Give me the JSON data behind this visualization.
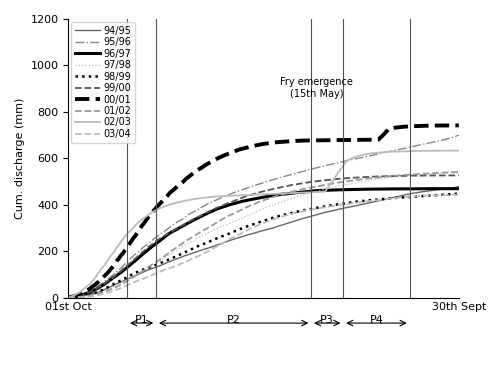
{
  "ylabel": "Cum. discharge (mm)",
  "ylim": [
    0,
    1200
  ],
  "yticks": [
    0,
    200,
    400,
    600,
    800,
    1000,
    1200
  ],
  "xlabel_left": "01st Oct",
  "xlabel_right": "30th Sept",
  "xmin": 0,
  "xmax": 365,
  "vertical_lines_x": [
    55,
    82,
    227,
    257,
    319
  ],
  "period_labels": [
    "P1",
    "P2",
    "P3",
    "P4"
  ],
  "period_arrows": [
    [
      55,
      82
    ],
    [
      82,
      227
    ],
    [
      227,
      257
    ],
    [
      257,
      319
    ]
  ],
  "fry_emergence_x": 227,
  "fry_emergence_label": "Fry emergence\n(15th May)",
  "series": [
    {
      "label": "94/95",
      "color": "#666666",
      "linewidth": 1.0,
      "linestyle": "solid",
      "data_x": [
        0,
        5,
        10,
        15,
        20,
        25,
        30,
        35,
        40,
        45,
        50,
        55,
        60,
        65,
        70,
        75,
        80,
        85,
        90,
        95,
        100,
        110,
        120,
        130,
        140,
        150,
        160,
        170,
        180,
        190,
        200,
        210,
        220,
        230,
        240,
        250,
        260,
        270,
        280,
        290,
        300,
        310,
        320,
        330,
        340,
        350,
        360,
        365
      ],
      "data_y": [
        0,
        2,
        5,
        9,
        14,
        20,
        28,
        38,
        50,
        62,
        72,
        82,
        92,
        102,
        112,
        122,
        130,
        138,
        148,
        158,
        168,
        185,
        200,
        215,
        230,
        248,
        262,
        275,
        288,
        300,
        315,
        328,
        342,
        355,
        368,
        378,
        388,
        398,
        408,
        418,
        428,
        438,
        448,
        455,
        462,
        468,
        473,
        478
      ]
    },
    {
      "label": "95/96",
      "color": "#888888",
      "linewidth": 1.0,
      "linestyle": "dashdot",
      "data_x": [
        0,
        5,
        10,
        15,
        20,
        25,
        30,
        35,
        40,
        45,
        50,
        55,
        60,
        65,
        70,
        75,
        80,
        85,
        90,
        95,
        100,
        110,
        120,
        130,
        140,
        150,
        160,
        170,
        180,
        190,
        200,
        210,
        220,
        230,
        240,
        250,
        260,
        270,
        280,
        290,
        300,
        310,
        320,
        330,
        340,
        350,
        360,
        365
      ],
      "data_y": [
        0,
        4,
        10,
        18,
        28,
        40,
        55,
        72,
        90,
        110,
        130,
        150,
        170,
        190,
        210,
        230,
        250,
        268,
        285,
        302,
        318,
        348,
        375,
        400,
        422,
        442,
        460,
        477,
        492,
        507,
        520,
        533,
        545,
        557,
        568,
        578,
        588,
        598,
        608,
        618,
        628,
        638,
        648,
        658,
        668,
        678,
        690,
        700
      ]
    },
    {
      "label": "96/97",
      "color": "#000000",
      "linewidth": 2.2,
      "linestyle": "solid",
      "data_x": [
        0,
        5,
        10,
        15,
        20,
        25,
        30,
        35,
        40,
        45,
        50,
        55,
        60,
        65,
        70,
        75,
        80,
        85,
        90,
        95,
        100,
        110,
        120,
        130,
        140,
        150,
        160,
        170,
        180,
        190,
        200,
        210,
        220,
        230,
        240,
        250,
        260,
        270,
        280,
        290,
        300,
        310,
        320,
        330,
        340,
        350,
        360,
        365
      ],
      "data_y": [
        0,
        3,
        8,
        15,
        24,
        35,
        48,
        62,
        78,
        95,
        112,
        130,
        150,
        170,
        190,
        210,
        228,
        245,
        262,
        278,
        292,
        318,
        342,
        365,
        385,
        400,
        412,
        422,
        430,
        438,
        445,
        450,
        455,
        460,
        462,
        464,
        465,
        466,
        467,
        467,
        468,
        468,
        468,
        469,
        469,
        469,
        469,
        469
      ]
    },
    {
      "label": "97/98",
      "color": "#bbbbbb",
      "linewidth": 0.9,
      "linestyle": "dotted",
      "data_x": [
        0,
        5,
        10,
        15,
        20,
        25,
        30,
        35,
        40,
        45,
        50,
        55,
        60,
        65,
        70,
        75,
        80,
        85,
        90,
        95,
        100,
        110,
        120,
        130,
        140,
        150,
        160,
        170,
        180,
        190,
        200,
        210,
        220,
        230,
        240,
        250,
        260,
        270,
        280,
        290,
        300,
        310,
        320,
        330,
        340,
        350,
        360,
        365
      ],
      "data_y": [
        0,
        1,
        3,
        6,
        10,
        15,
        22,
        30,
        40,
        52,
        65,
        78,
        90,
        102,
        115,
        128,
        140,
        155,
        170,
        185,
        200,
        228,
        255,
        278,
        298,
        318,
        338,
        358,
        378,
        396,
        413,
        428,
        442,
        455,
        467,
        478,
        488,
        497,
        505,
        512,
        518,
        523,
        527,
        530,
        533,
        535,
        537,
        538
      ]
    },
    {
      "label": "98/99",
      "color": "#000000",
      "linewidth": 1.8,
      "linestyle": "dotted",
      "data_x": [
        0,
        5,
        10,
        15,
        20,
        25,
        30,
        35,
        40,
        45,
        50,
        55,
        60,
        65,
        70,
        75,
        80,
        85,
        90,
        95,
        100,
        110,
        120,
        130,
        140,
        150,
        160,
        170,
        180,
        190,
        200,
        210,
        220,
        230,
        240,
        250,
        260,
        270,
        280,
        290,
        300,
        310,
        320,
        330,
        340,
        350,
        360,
        365
      ],
      "data_y": [
        0,
        2,
        5,
        9,
        14,
        20,
        28,
        38,
        50,
        62,
        74,
        86,
        98,
        108,
        118,
        128,
        136,
        145,
        155,
        165,
        175,
        198,
        220,
        240,
        260,
        278,
        296,
        313,
        328,
        342,
        355,
        366,
        376,
        385,
        393,
        400,
        407,
        413,
        418,
        422,
        426,
        430,
        433,
        436,
        440,
        443,
        446,
        448
      ]
    },
    {
      "label": "99/00",
      "color": "#555555",
      "linewidth": 1.3,
      "linestyle": "dashed",
      "data_x": [
        0,
        5,
        10,
        15,
        20,
        25,
        30,
        35,
        40,
        45,
        50,
        55,
        60,
        65,
        70,
        75,
        80,
        85,
        90,
        95,
        100,
        110,
        120,
        130,
        140,
        150,
        160,
        170,
        180,
        190,
        200,
        210,
        220,
        230,
        240,
        250,
        260,
        270,
        280,
        290,
        300,
        310,
        320,
        330,
        340,
        350,
        360,
        365
      ],
      "data_y": [
        0,
        3,
        8,
        15,
        24,
        35,
        48,
        63,
        80,
        98,
        118,
        138,
        158,
        178,
        198,
        218,
        236,
        252,
        268,
        282,
        295,
        320,
        345,
        367,
        388,
        407,
        424,
        440,
        454,
        466,
        476,
        485,
        493,
        500,
        505,
        510,
        514,
        517,
        520,
        522,
        523,
        524,
        525,
        525,
        526,
        526,
        526,
        526
      ]
    },
    {
      "label": "00/01",
      "color": "#000000",
      "linewidth": 2.8,
      "linestyle": "dashed",
      "data_x": [
        0,
        5,
        10,
        15,
        20,
        25,
        30,
        35,
        40,
        45,
        50,
        55,
        60,
        65,
        70,
        75,
        80,
        85,
        90,
        95,
        100,
        110,
        120,
        130,
        140,
        150,
        160,
        170,
        180,
        190,
        200,
        210,
        220,
        230,
        240,
        250,
        260,
        270,
        280,
        290,
        300,
        310,
        320,
        330,
        340,
        350,
        360,
        365
      ],
      "data_y": [
        0,
        5,
        13,
        24,
        38,
        55,
        75,
        98,
        125,
        155,
        185,
        218,
        252,
        285,
        318,
        350,
        380,
        408,
        432,
        455,
        475,
        512,
        545,
        573,
        598,
        618,
        635,
        648,
        658,
        665,
        670,
        673,
        675,
        676,
        676,
        677,
        677,
        678,
        678,
        679,
        729,
        735,
        738,
        740,
        741,
        741,
        741,
        742
      ]
    },
    {
      "label": "01/02",
      "color": "#999999",
      "linewidth": 1.3,
      "linestyle": "dashed",
      "data_x": [
        0,
        5,
        10,
        15,
        20,
        25,
        30,
        35,
        40,
        45,
        50,
        55,
        60,
        65,
        70,
        75,
        80,
        85,
        90,
        95,
        100,
        110,
        120,
        130,
        140,
        150,
        160,
        170,
        180,
        190,
        200,
        210,
        220,
        230,
        240,
        250,
        260,
        270,
        280,
        290,
        300,
        310,
        320,
        330,
        340,
        350,
        360,
        365
      ],
      "data_y": [
        0,
        1,
        2,
        5,
        8,
        13,
        19,
        27,
        37,
        48,
        60,
        73,
        86,
        100,
        115,
        130,
        145,
        162,
        178,
        195,
        212,
        245,
        275,
        302,
        328,
        352,
        374,
        394,
        412,
        428,
        442,
        455,
        466,
        476,
        485,
        493,
        500,
        506,
        512,
        517,
        522,
        526,
        530,
        533,
        536,
        538,
        540,
        541
      ]
    },
    {
      "label": "02/03",
      "color": "#bbbbbb",
      "linewidth": 1.3,
      "linestyle": "solid",
      "data_x": [
        0,
        5,
        10,
        15,
        20,
        25,
        30,
        35,
        40,
        45,
        50,
        55,
        60,
        65,
        70,
        75,
        80,
        85,
        90,
        95,
        100,
        110,
        120,
        130,
        140,
        150,
        160,
        170,
        180,
        190,
        200,
        210,
        220,
        230,
        240,
        250,
        260,
        270,
        280,
        290,
        300,
        310,
        320,
        330,
        340,
        350,
        360,
        365
      ],
      "data_y": [
        0,
        8,
        20,
        38,
        60,
        85,
        115,
        148,
        182,
        215,
        245,
        272,
        297,
        318,
        338,
        355,
        370,
        382,
        392,
        400,
        407,
        418,
        426,
        432,
        436,
        438,
        440,
        442,
        444,
        446,
        448,
        450,
        452,
        454,
        456,
        526,
        590,
        610,
        620,
        625,
        628,
        630,
        631,
        632,
        632,
        633,
        633,
        633
      ]
    },
    {
      "label": "03/04",
      "color": "#bbbbbb",
      "linewidth": 1.3,
      "linestyle": "dashed",
      "data_x": [
        0,
        5,
        10,
        15,
        20,
        25,
        30,
        35,
        40,
        45,
        50,
        55,
        60,
        65,
        70,
        75,
        80,
        85,
        90,
        95,
        100,
        110,
        120,
        130,
        140,
        150,
        160,
        170,
        180,
        190,
        200,
        210,
        220,
        230,
        240,
        250,
        260,
        270,
        280,
        290,
        300,
        310,
        320,
        330,
        340,
        350,
        360,
        365
      ],
      "data_y": [
        0,
        0,
        1,
        2,
        4,
        7,
        12,
        18,
        25,
        33,
        42,
        52,
        62,
        72,
        82,
        92,
        102,
        112,
        120,
        128,
        136,
        155,
        175,
        198,
        222,
        248,
        272,
        295,
        316,
        335,
        350,
        363,
        374,
        383,
        390,
        397,
        403,
        409,
        415,
        420,
        426,
        431,
        435,
        438,
        440,
        441,
        442,
        443
      ]
    }
  ],
  "background_color": "#ffffff",
  "legend_fontsize": 7,
  "axis_fontsize": 8,
  "tick_fontsize": 8
}
